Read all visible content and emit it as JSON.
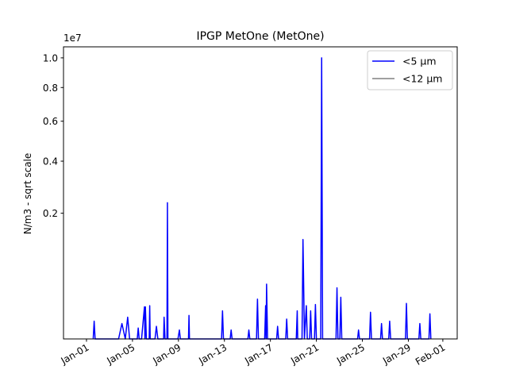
{
  "chart_data": {
    "type": "line",
    "title": "IPGP MetOne (MetOne)",
    "ylabel": "N/m3 - sqrt scale",
    "xlabel": "",
    "y_scale": "sqrt",
    "y_offset_label": "1e7",
    "ylim": [
      0,
      10800000
    ],
    "yticks": [
      {
        "value": 2000000,
        "label": "0.2"
      },
      {
        "value": 4000000,
        "label": "0.4"
      },
      {
        "value": 6000000,
        "label": "0.6"
      },
      {
        "value": 8000000,
        "label": "0.8"
      },
      {
        "value": 10000000,
        "label": "1.0"
      }
    ],
    "xlim": [
      "2024-12-30T00:00",
      "2025-02-02T06:00"
    ],
    "xticks": [
      {
        "value": "2025-01-01",
        "label": "Jan-01"
      },
      {
        "value": "2025-01-05",
        "label": "Jan-05"
      },
      {
        "value": "2025-01-09",
        "label": "Jan-09"
      },
      {
        "value": "2025-01-13",
        "label": "Jan-13"
      },
      {
        "value": "2025-01-17",
        "label": "Jan-17"
      },
      {
        "value": "2025-01-21",
        "label": "Jan-21"
      },
      {
        "value": "2025-01-25",
        "label": "Jan-25"
      },
      {
        "value": "2025-01-29",
        "label": "Jan-29"
      },
      {
        "value": "2025-02-01",
        "label": "Feb-01"
      }
    ],
    "grid": false,
    "legend": "top-right",
    "series": [
      {
        "name": "<5 µm",
        "color": "#0000ff",
        "points": [
          [
            "2025-01-01T14:00",
            0
          ],
          [
            "2025-01-01T16:00",
            40000
          ],
          [
            "2025-01-01T18:00",
            0
          ],
          [
            "2025-01-03T19:00",
            0
          ],
          [
            "2025-01-04T02:00",
            30000
          ],
          [
            "2025-01-04T09:00",
            0
          ],
          [
            "2025-01-04T14:00",
            60000
          ],
          [
            "2025-01-04T18:00",
            0
          ],
          [
            "2025-01-05T10:00",
            0
          ],
          [
            "2025-01-05T12:00",
            15000
          ],
          [
            "2025-01-05T14:00",
            0
          ],
          [
            "2025-01-05T19:00",
            0
          ],
          [
            "2025-01-06T01:00",
            130000
          ],
          [
            "2025-01-06T02:00",
            0
          ],
          [
            "2025-01-06T03:00",
            130000
          ],
          [
            "2025-01-06T05:00",
            0
          ],
          [
            "2025-01-06T11:00",
            0
          ],
          [
            "2025-01-06T12:00",
            140000
          ],
          [
            "2025-01-06T13:00",
            0
          ],
          [
            "2025-01-06T23:00",
            0
          ],
          [
            "2025-01-07T02:00",
            20000
          ],
          [
            "2025-01-07T05:00",
            0
          ],
          [
            "2025-01-07T17:00",
            0
          ],
          [
            "2025-01-07T18:00",
            60000
          ],
          [
            "2025-01-07T20:00",
            0
          ],
          [
            "2025-01-08T00:00",
            0
          ],
          [
            "2025-01-08T01:00",
            2350000
          ],
          [
            "2025-01-08T02:00",
            0
          ],
          [
            "2025-01-08T23:00",
            0
          ],
          [
            "2025-01-09T02:00",
            10000
          ],
          [
            "2025-01-09T04:00",
            0
          ],
          [
            "2025-01-09T21:00",
            0
          ],
          [
            "2025-01-09T22:00",
            70000
          ],
          [
            "2025-01-09T23:00",
            0
          ],
          [
            "2025-01-12T18:00",
            0
          ],
          [
            "2025-01-12T20:00",
            100000
          ],
          [
            "2025-01-12T22:00",
            0
          ],
          [
            "2025-01-13T12:00",
            0
          ],
          [
            "2025-01-13T14:00",
            10000
          ],
          [
            "2025-01-13T16:00",
            0
          ],
          [
            "2025-01-15T01:00",
            0
          ],
          [
            "2025-01-15T03:00",
            10000
          ],
          [
            "2025-01-15T05:00",
            0
          ],
          [
            "2025-01-15T19:00",
            0
          ],
          [
            "2025-01-15T21:00",
            200000
          ],
          [
            "2025-01-15T23:00",
            0
          ],
          [
            "2025-01-16T12:00",
            0
          ],
          [
            "2025-01-16T14:00",
            140000
          ],
          [
            "2025-01-16T15:00",
            0
          ],
          [
            "2025-01-16T16:00",
            380000
          ],
          [
            "2025-01-16T18:00",
            0
          ],
          [
            "2025-01-17T13:00",
            0
          ],
          [
            "2025-01-17T15:00",
            20000
          ],
          [
            "2025-01-17T17:00",
            0
          ],
          [
            "2025-01-18T08:00",
            0
          ],
          [
            "2025-01-18T10:00",
            50000
          ],
          [
            "2025-01-18T12:00",
            0
          ],
          [
            "2025-01-19T06:00",
            0
          ],
          [
            "2025-01-19T08:00",
            100000
          ],
          [
            "2025-01-19T09:00",
            0
          ],
          [
            "2025-01-19T18:00",
            0
          ],
          [
            "2025-01-19T20:00",
            1250000
          ],
          [
            "2025-01-19T21:00",
            600000
          ],
          [
            "2025-01-19T23:00",
            0
          ],
          [
            "2025-01-20T03:00",
            140000
          ],
          [
            "2025-01-20T05:00",
            0
          ],
          [
            "2025-01-20T10:00",
            0
          ],
          [
            "2025-01-20T12:00",
            100000
          ],
          [
            "2025-01-20T14:00",
            0
          ],
          [
            "2025-01-20T20:00",
            0
          ],
          [
            "2025-01-20T22:00",
            150000
          ],
          [
            "2025-01-21T00:00",
            0
          ],
          [
            "2025-01-21T09:00",
            0
          ],
          [
            "2025-01-21T11:00",
            10000000
          ],
          [
            "2025-01-21T13:00",
            0
          ],
          [
            "2025-01-22T17:00",
            0
          ],
          [
            "2025-01-22T19:00",
            330000
          ],
          [
            "2025-01-22T21:00",
            0
          ],
          [
            "2025-01-23T01:00",
            0
          ],
          [
            "2025-01-23T03:00",
            220000
          ],
          [
            "2025-01-23T05:00",
            0
          ],
          [
            "2025-01-24T14:00",
            0
          ],
          [
            "2025-01-24T16:00",
            10000
          ],
          [
            "2025-01-24T18:00",
            0
          ],
          [
            "2025-01-25T15:00",
            0
          ],
          [
            "2025-01-25T17:00",
            90000
          ],
          [
            "2025-01-25T19:00",
            0
          ],
          [
            "2025-01-26T14:00",
            0
          ],
          [
            "2025-01-26T16:00",
            30000
          ],
          [
            "2025-01-26T18:00",
            0
          ],
          [
            "2025-01-27T07:00",
            0
          ],
          [
            "2025-01-27T09:00",
            40000
          ],
          [
            "2025-01-27T11:00",
            0
          ],
          [
            "2025-01-28T18:00",
            0
          ],
          [
            "2025-01-28T20:00",
            160000
          ],
          [
            "2025-01-28T22:00",
            0
          ],
          [
            "2025-01-29T22:00",
            0
          ],
          [
            "2025-01-30T00:00",
            30000
          ],
          [
            "2025-01-30T02:00",
            0
          ],
          [
            "2025-01-30T19:00",
            0
          ],
          [
            "2025-01-30T21:00",
            80000
          ],
          [
            "2025-01-30T23:00",
            0
          ]
        ]
      },
      {
        "name": "<12 µm",
        "color": "#808080",
        "points": []
      }
    ]
  }
}
